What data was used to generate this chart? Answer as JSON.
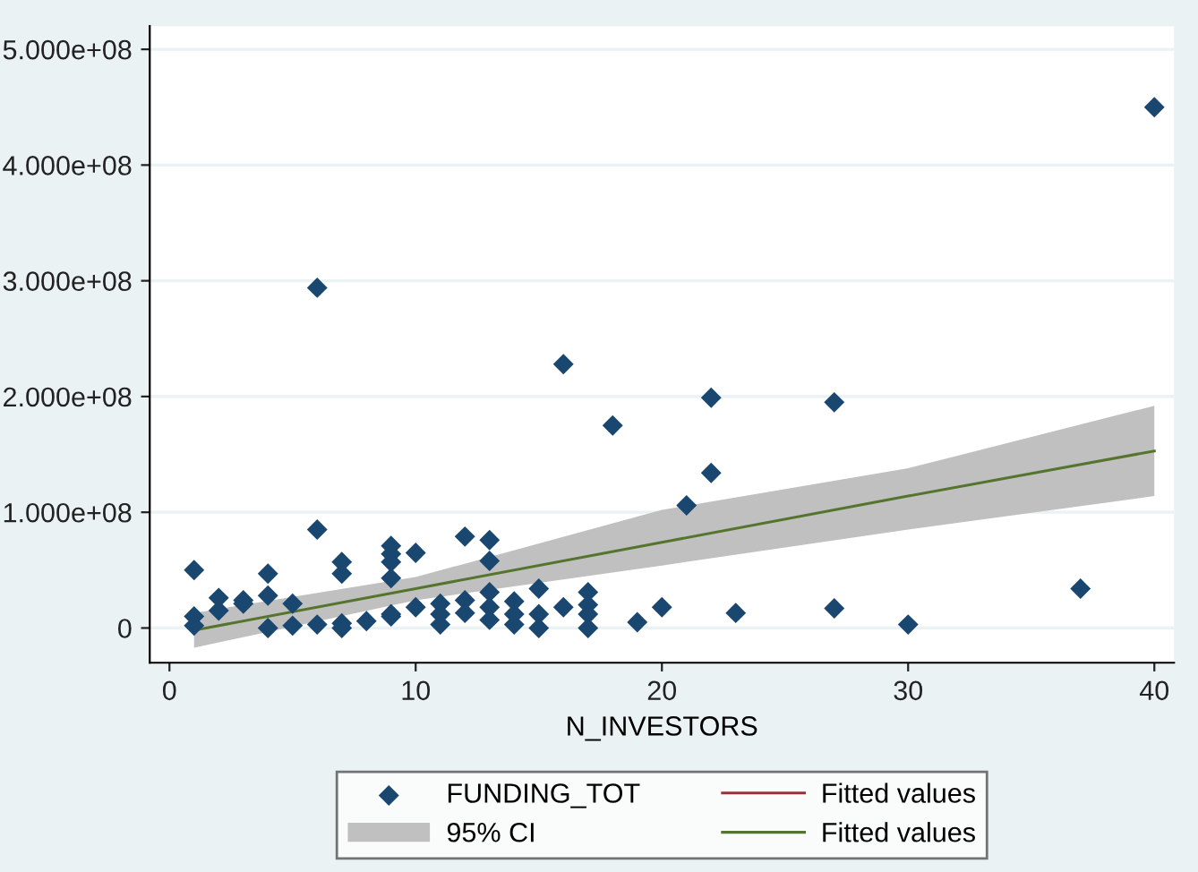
{
  "chart_data": {
    "type": "scatter",
    "xlabel": "N_INVESTORS",
    "xlim": [
      -0.8,
      40.8
    ],
    "xticks": [
      0,
      10,
      20,
      30,
      40
    ],
    "ylim": [
      -30000000.0,
      520000000.0
    ],
    "yticks": [
      {
        "value": 0,
        "label": "0"
      },
      {
        "value": 100000000.0,
        "label": "1.000e+08"
      },
      {
        "value": 200000000.0,
        "label": "2.000e+08"
      },
      {
        "value": 300000000.0,
        "label": "3.000e+08"
      },
      {
        "value": 400000000.0,
        "label": "4.000e+08"
      },
      {
        "value": 500000000.0,
        "label": "5.000e+08"
      }
    ],
    "grid": "y",
    "legend": "bottom",
    "series": [
      {
        "name": "FUNDING_TOT",
        "type": "scatter",
        "marker": "diamond",
        "color": "#1a476f",
        "x": [
          1,
          1,
          1,
          2,
          2,
          3,
          3,
          4,
          4,
          4,
          5,
          5,
          6,
          6,
          6,
          7,
          7,
          7,
          7,
          8,
          9,
          9,
          9,
          9,
          9,
          9,
          10,
          10,
          11,
          11,
          11,
          12,
          12,
          12,
          13,
          13,
          13,
          13,
          13,
          14,
          14,
          14,
          15,
          15,
          15,
          16,
          16,
          17,
          17,
          17,
          17,
          18,
          19,
          20,
          21,
          22,
          22,
          23,
          27,
          27,
          30,
          37,
          40
        ],
        "values": [
          50000000.0,
          10000000.0,
          2000000.0,
          26000000.0,
          15000000.0,
          24000000.0,
          21000000.0,
          47000000.0,
          28000000.0,
          0,
          21000000.0,
          2000000.0,
          294000000.0,
          85000000.0,
          3000000.0,
          57000000.0,
          47000000.0,
          4000000.0,
          0,
          6000000.0,
          71000000.0,
          64000000.0,
          57000000.0,
          43000000.0,
          12000000.0,
          10000000.0,
          65000000.0,
          18000000.0,
          21000000.0,
          12000000.0,
          3000000.0,
          79000000.0,
          24000000.0,
          13000000.0,
          76000000.0,
          58000000.0,
          31000000.0,
          18000000.0,
          7000000.0,
          23000000.0,
          12000000.0,
          3000000.0,
          34000000.0,
          12000000.0,
          0,
          228000000.0,
          18000000.0,
          31000000.0,
          20000000.0,
          12000000.0,
          0,
          175000000.0,
          5000000.0,
          18000000.0,
          106000000.0,
          199000000.0,
          134000000.0,
          13000000.0,
          195000000.0,
          17000000.0,
          3000000.0,
          34000000.0,
          450000000.0
        ]
      },
      {
        "name": "95% CI",
        "type": "area",
        "color": "#c0c0c0"
      },
      {
        "name": "Fitted values",
        "type": "line",
        "color": "#90353b"
      },
      {
        "name": "Fitted values",
        "type": "line",
        "color": "#55752f",
        "x": [
          1,
          10,
          20,
          30,
          40
        ],
        "values": [
          -2000000.0,
          34000000.0,
          74000000.0,
          114000000.0,
          153000000.0
        ],
        "lower": [
          -17000000.0,
          24000000.0,
          54000000.0,
          85000000.0,
          114000000.0
        ],
        "upper": [
          13000000.0,
          44000000.0,
          102000000.0,
          138000000.0,
          192000000.0
        ]
      }
    ]
  }
}
